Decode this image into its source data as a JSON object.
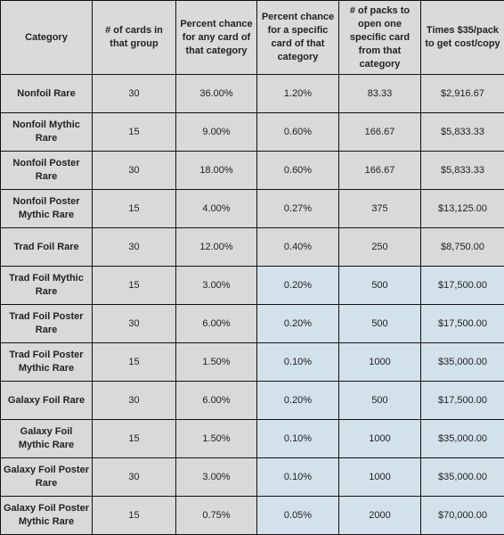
{
  "table": {
    "header": [
      "Category",
      "# of cards in that group",
      "Percent chance for any card of that category",
      "Percent chance for a specific card of that category",
      "# of packs to open one specific card from that category",
      "Times $35/pack to get cost/copy"
    ],
    "rows": [
      [
        "Nonfoil Rare",
        "30",
        "36.00%",
        "1.20%",
        "83.33",
        "$2,916.67"
      ],
      [
        "Nonfoil Mythic Rare",
        "15",
        "9.00%",
        "0.60%",
        "166.67",
        "$5,833.33"
      ],
      [
        "Nonfoil Poster Rare",
        "30",
        "18.00%",
        "0.60%",
        "166.67",
        "$5,833.33"
      ],
      [
        "Nonfoil Poster Mythic Rare",
        "15",
        "4.00%",
        "0.27%",
        "375",
        "$13,125.00"
      ],
      [
        "Trad Foil Rare",
        "30",
        "12.00%",
        "0.40%",
        "250",
        "$8,750.00"
      ],
      [
        "Trad Foil Mythic Rare",
        "15",
        "3.00%",
        "0.20%",
        "500",
        "$17,500.00"
      ],
      [
        "Trad Foil Poster Rare",
        "30",
        "6.00%",
        "0.20%",
        "500",
        "$17,500.00"
      ],
      [
        "Trad Foil Poster Mythic Rare",
        "15",
        "1.50%",
        "0.10%",
        "1000",
        "$35,000.00"
      ],
      [
        "Galaxy Foil Rare",
        "30",
        "6.00%",
        "0.20%",
        "500",
        "$17,500.00"
      ],
      [
        "Galaxy Foil Mythic Rare",
        "15",
        "1.50%",
        "0.10%",
        "1000",
        "$35,000.00"
      ],
      [
        "Galaxy Foil Poster Rare",
        "30",
        "3.00%",
        "0.10%",
        "1000",
        "$35,000.00"
      ],
      [
        "Galaxy Foil Poster Mythic Rare",
        "15",
        "0.75%",
        "0.05%",
        "2000",
        "$70,000.00"
      ]
    ]
  }
}
